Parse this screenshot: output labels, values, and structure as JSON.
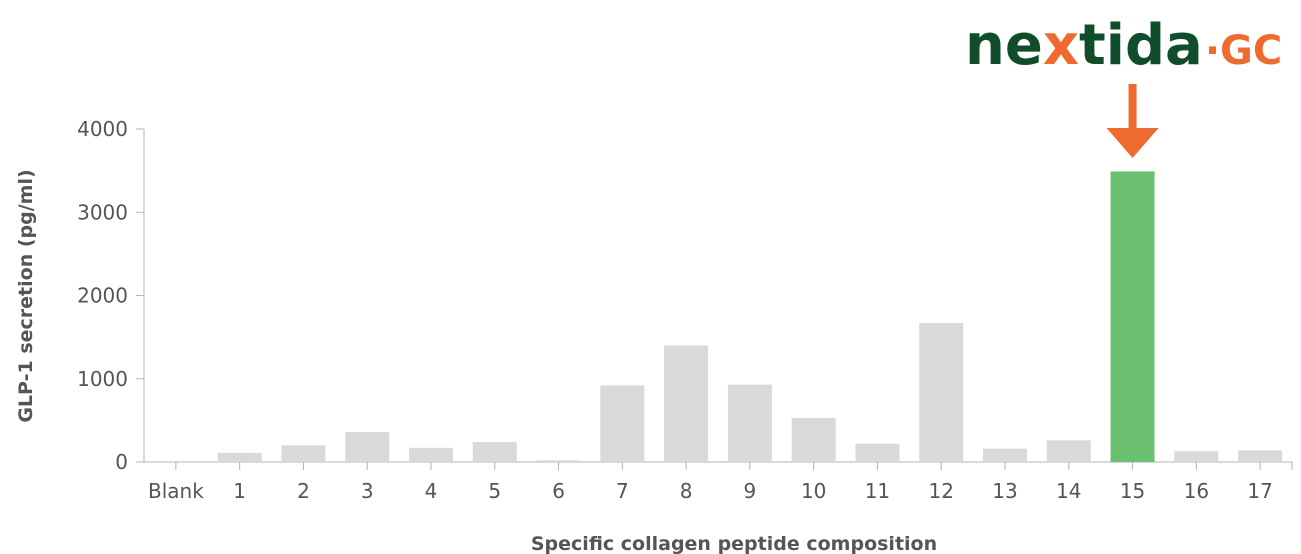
{
  "brand": {
    "logo_text_part1": "ne",
    "logo_text_part2": "x",
    "logo_text_part3": "tida",
    "logo_suffix": "·GC",
    "primary_color": "#0f4d2b",
    "accent_color": "#ee6a2f"
  },
  "chart_data": {
    "type": "bar",
    "title": "",
    "xlabel": "Specific collagen peptide composition",
    "ylabel": "GLP-1 secretion (pg/ml)",
    "categories": [
      "Blank",
      "1",
      "2",
      "3",
      "4",
      "5",
      "6",
      "7",
      "8",
      "9",
      "10",
      "11",
      "12",
      "13",
      "14",
      "15",
      "16",
      "17"
    ],
    "values": [
      0,
      110,
      200,
      360,
      170,
      240,
      20,
      920,
      1400,
      930,
      530,
      220,
      1670,
      160,
      260,
      3490,
      130,
      140
    ],
    "ylim": [
      0,
      4000
    ],
    "yticks": [
      0,
      1000,
      2000,
      3000,
      4000
    ],
    "grid": false,
    "bar_color": "#d9d9d9",
    "highlight_index": 15,
    "highlight_color": "#6abf70",
    "arrow_color": "#ee6a2f"
  }
}
